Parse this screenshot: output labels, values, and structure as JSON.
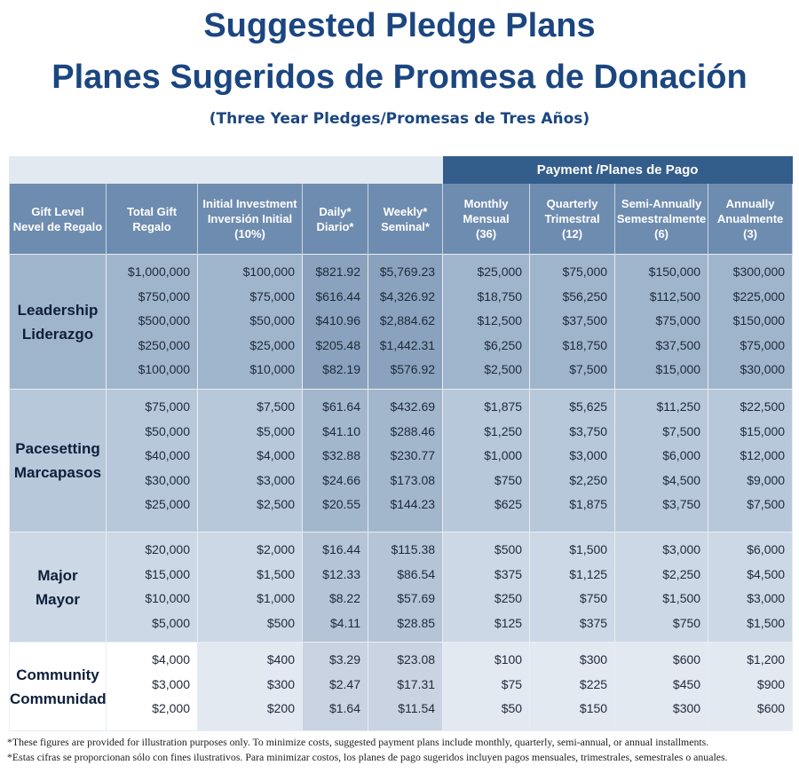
{
  "title_en": "Suggested Pledge Plans",
  "title_es": "Planes Sugeridos de Promesa de Donación",
  "subtitle": "(Three Year Pledges/Promesas de Tres Años)",
  "payment_header": "Payment /Planes de Pago",
  "columns": [
    [
      "Gift Level",
      "Nevel de Regalo"
    ],
    [
      "Total Gift",
      "Regalo"
    ],
    [
      "Initial Investment",
      "Inversión Initial",
      "(10%)"
    ],
    [
      "Daily*",
      "Diario*"
    ],
    [
      "Weekly*",
      "Seminal*"
    ],
    [
      "Monthly",
      "Mensual",
      "(36)"
    ],
    [
      "Quarterly",
      "Trimestral",
      "(12)"
    ],
    [
      "Semi-Annually",
      "Semestralmente",
      "(6)"
    ],
    [
      "Annually",
      "Anualmente",
      "(3)"
    ]
  ],
  "groups": [
    {
      "label": [
        "Leadership",
        "Liderazgo"
      ],
      "values": [
        [
          "$1,000,000",
          "$750,000",
          "$500,000",
          "$250,000",
          "$100,000"
        ],
        [
          "$100,000",
          "$75,000",
          "$50,000",
          "$25,000",
          "$10,000"
        ],
        [
          "$821.92",
          "$616.44",
          "$410.96",
          "$205.48",
          "$82.19"
        ],
        [
          "$5,769.23",
          "$4,326.92",
          "$2,884.62",
          "$1,442.31",
          "$576.92"
        ],
        [
          "$25,000",
          "$18,750",
          "$12,500",
          "$6,250",
          "$2,500"
        ],
        [
          "$75,000",
          "$56,250",
          "$37,500",
          "$18,750",
          "$7,500"
        ],
        [
          "$150,000",
          "$112,500",
          "$75,000",
          "$37,500",
          "$15,000"
        ],
        [
          "$300,000",
          "$225,000",
          "$150,000",
          "$75,000",
          "$30,000"
        ]
      ]
    },
    {
      "label": [
        "Pacesetting",
        "Marcapasos"
      ],
      "values": [
        [
          "$75,000",
          "$50,000",
          "$40,000",
          "$30,000",
          "$25,000"
        ],
        [
          "$7,500",
          "$5,000",
          "$4,000",
          "$3,000",
          "$2,500"
        ],
        [
          "$61.64",
          "$41.10",
          "$32.88",
          "$24.66",
          "$20.55"
        ],
        [
          "$432.69",
          "$288.46",
          "$230.77",
          "$173.08",
          "$144.23"
        ],
        [
          "$1,875",
          "$1,250",
          "$1,000",
          "$750",
          "$625"
        ],
        [
          "$5,625",
          "$3,750",
          "$3,000",
          "$2,250",
          "$1,875"
        ],
        [
          "$11,250",
          "$7,500",
          "$6,000",
          "$4,500",
          "$3,750"
        ],
        [
          "$22,500",
          "$15,000",
          "$12,000",
          "$9,000",
          "$7,500"
        ]
      ]
    },
    {
      "label": [
        "Major",
        "Mayor"
      ],
      "values": [
        [
          "$20,000",
          "$15,000",
          "$10,000",
          "$5,000"
        ],
        [
          "$2,000",
          "$1,500",
          "$1,000",
          "$500"
        ],
        [
          "$16.44",
          "$12.33",
          "$8.22",
          "$4.11"
        ],
        [
          "$115.38",
          "$86.54",
          "$57.69",
          "$28.85"
        ],
        [
          "$500",
          "$375",
          "$250",
          "$125"
        ],
        [
          "$1,500",
          "$1,125",
          "$750",
          "$375"
        ],
        [
          "$3,000",
          "$2,250",
          "$1,500",
          "$750"
        ],
        [
          "$6,000",
          "$4,500",
          "$3,000",
          "$1,500"
        ]
      ]
    },
    {
      "label": [
        "Community",
        "Communidad"
      ],
      "values": [
        [
          "$4,000",
          "$3,000",
          "$2,000"
        ],
        [
          "$400",
          "$300",
          "$200"
        ],
        [
          "$3.29",
          "$2.47",
          "$1.64"
        ],
        [
          "$23.08",
          "$17.31",
          "$11.54"
        ],
        [
          "$100",
          "$75",
          "$50"
        ],
        [
          "$300",
          "$225",
          "$150"
        ],
        [
          "$600",
          "$450",
          "$300"
        ],
        [
          "$1,200",
          "$900",
          "$600"
        ]
      ]
    }
  ],
  "footnotes": [
    "*These figures are provided for illustration purposes only. To minimize costs, suggested payment plans include monthly, quarterly, semi-annual, or annual installments.",
    "*Estas cifras se proporcionan sólo con fines ilustrativos. Para minimizar costos, los planes de pago sugeridos incluyen pagos mensuales, trimestrales, semestrales o anuales."
  ]
}
